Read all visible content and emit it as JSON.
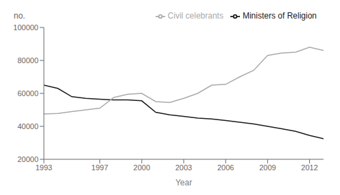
{
  "chart_data": {
    "type": "line",
    "xlabel": "Year",
    "ylabel": "no.",
    "x": [
      1993,
      1994,
      1995,
      1996,
      1997,
      1998,
      1999,
      2000,
      2001,
      2002,
      2003,
      2004,
      2005,
      2006,
      2007,
      2008,
      2009,
      2010,
      2011,
      2012,
      2013
    ],
    "series": [
      {
        "name": "Ministers of Religion",
        "color": "#1a1a1a",
        "values": [
          65000,
          63000,
          58000,
          57000,
          56500,
          56000,
          56000,
          55500,
          48500,
          47000,
          46000,
          45000,
          44500,
          43500,
          42500,
          41500,
          40000,
          38500,
          37000,
          34500,
          32500
        ]
      },
      {
        "name": "Civil celebrants",
        "color": "#aaaaaa",
        "values": [
          47500,
          47800,
          49000,
          50000,
          51000,
          57500,
          59500,
          60000,
          55000,
          54500,
          57000,
          60000,
          65000,
          65500,
          70000,
          74000,
          83000,
          84500,
          85000,
          88000,
          86000
        ]
      }
    ],
    "xlim": [
      1993,
      2013
    ],
    "ylim": [
      20000,
      100000
    ],
    "xticks": [
      1993,
      1997,
      2000,
      2003,
      2006,
      2009,
      2012
    ],
    "yticks": [
      20000,
      40000,
      60000,
      80000,
      100000
    ],
    "grid": false,
    "legend": "upper right"
  }
}
